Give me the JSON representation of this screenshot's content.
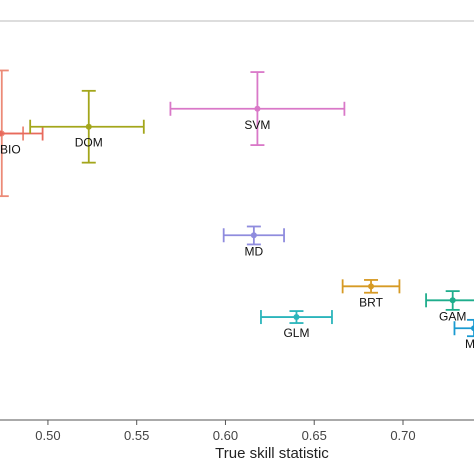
{
  "chart_data": {
    "type": "scatter",
    "title": "",
    "xlabel": "True skill statistic",
    "ylabel": "",
    "xlim": [
      0.473,
      0.74
    ],
    "ylim": [
      0,
      1
    ],
    "x_ticks": [
      0.5,
      0.55,
      0.6,
      0.65,
      0.7
    ],
    "x_tick_labels": [
      "0.50",
      "0.55",
      "0.60",
      "0.65",
      "0.70"
    ],
    "grid": false,
    "legend": "none",
    "error_bars": true,
    "points": [
      {
        "label": "BIO",
        "x": 0.474,
        "x_err": [
          0.462,
          0.486
        ],
        "y": 0.718,
        "y_err": [
          0.561,
          0.876
        ],
        "color": "#ec8a77"
      },
      {
        "label": "BIO",
        "x": 0.473,
        "x_err": [
          0.462,
          0.497
        ],
        "y": 0.718,
        "y_err": [
          0.718,
          0.718
        ],
        "color": "#e86a5c"
      },
      {
        "label": "DOM",
        "x": 0.523,
        "x_err": [
          0.49,
          0.554
        ],
        "y": 0.735,
        "y_err": [
          0.645,
          0.825
        ],
        "color": "#a3a61b"
      },
      {
        "label": "SVM",
        "x": 0.618,
        "x_err": [
          0.569,
          0.667
        ],
        "y": 0.78,
        "y_err": [
          0.689,
          0.872
        ],
        "color": "#d978c8"
      },
      {
        "label": "MD",
        "x": 0.616,
        "x_err": [
          0.599,
          0.633
        ],
        "y": 0.463,
        "y_err": [
          0.44,
          0.485
        ],
        "color": "#8f8cde"
      },
      {
        "label": "BRT",
        "x": 0.682,
        "x_err": [
          0.666,
          0.698
        ],
        "y": 0.335,
        "y_err": [
          0.319,
          0.351
        ],
        "color": "#d69a24"
      },
      {
        "label": "GLM",
        "x": 0.64,
        "x_err": [
          0.62,
          0.66
        ],
        "y": 0.258,
        "y_err": [
          0.243,
          0.273
        ],
        "color": "#2bb5bb"
      },
      {
        "label": "GAM",
        "x": 0.728,
        "x_err": [
          0.713,
          0.743
        ],
        "y": 0.3,
        "y_err": [
          0.276,
          0.323
        ],
        "color": "#1ead8c"
      },
      {
        "label": "MA",
        "x": 0.74,
        "x_err": [
          0.729,
          0.751
        ],
        "y": 0.23,
        "y_err": [
          0.21,
          0.251
        ],
        "color": "#1a9ad1"
      }
    ]
  }
}
